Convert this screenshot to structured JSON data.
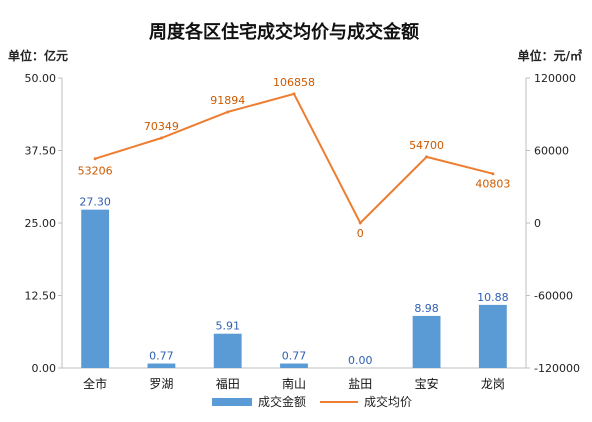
{
  "chart_data": {
    "type": "bar",
    "title": "周度各区住宅成交均价与成交金额",
    "left_unit": "单位：亿元",
    "right_unit": "单位：元/㎡",
    "categories": [
      "全市",
      "罗湖",
      "福田",
      "南山",
      "盐田",
      "宝安",
      "龙岗"
    ],
    "left_axis": {
      "ylim": [
        0,
        50
      ],
      "ticks": [
        0,
        12.5,
        25,
        37.5,
        50
      ],
      "tick_labels": [
        "0.00",
        "12.50",
        "25.00",
        "37.50",
        "50.00"
      ]
    },
    "right_axis": {
      "ylim": [
        -120000,
        120000
      ],
      "ticks": [
        -120000,
        -60000,
        0,
        60000,
        120000
      ],
      "tick_labels": [
        "-120000",
        "-60000",
        "0",
        "60000",
        "120000"
      ]
    },
    "series": [
      {
        "name": "成交金额",
        "type": "bar",
        "axis": "left",
        "color": "#5b9bd5",
        "values": [
          27.3,
          0.77,
          5.91,
          0.77,
          0.0,
          8.98,
          10.88
        ],
        "labels": [
          "27.30",
          "0.77",
          "5.91",
          "0.77",
          "0.00",
          "8.98",
          "10.88"
        ]
      },
      {
        "name": "成交均价",
        "type": "line",
        "axis": "right",
        "color": "#ed7d31",
        "values": [
          53206,
          70349,
          91894,
          106858,
          0,
          54700,
          40803
        ],
        "labels": [
          "53206",
          "70349",
          "91894",
          "106858",
          "0",
          "54700",
          "40803"
        ]
      }
    ],
    "legend_position": "bottom",
    "grid": false
  }
}
